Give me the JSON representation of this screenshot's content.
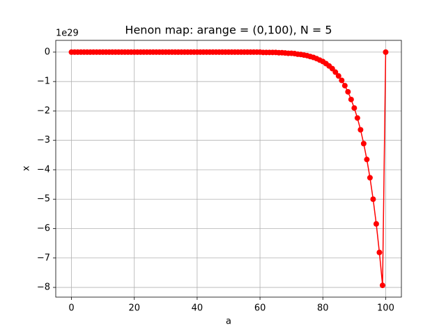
{
  "chart_data": {
    "type": "line",
    "title": "Henon map: arange = (0,100), N = 5",
    "x_label": "a",
    "y_label": "x",
    "y_offset_label": "1e29",
    "x": [
      0,
      1,
      2,
      3,
      4,
      5,
      6,
      7,
      8,
      9,
      10,
      11,
      12,
      13,
      14,
      15,
      16,
      17,
      18,
      19,
      20,
      21,
      22,
      23,
      24,
      25,
      26,
      27,
      28,
      29,
      30,
      31,
      32,
      33,
      34,
      35,
      36,
      37,
      38,
      39,
      40,
      41,
      42,
      43,
      44,
      45,
      46,
      47,
      48,
      49,
      50,
      51,
      52,
      53,
      54,
      55,
      56,
      57,
      58,
      59,
      60,
      61,
      62,
      63,
      64,
      65,
      66,
      67,
      68,
      69,
      70,
      71,
      72,
      73,
      74,
      75,
      76,
      77,
      78,
      79,
      80,
      81,
      82,
      83,
      84,
      85,
      86,
      87,
      88,
      89,
      90,
      91,
      92,
      93,
      94,
      95,
      96,
      97,
      98,
      99,
      100
    ],
    "series": [
      {
        "color": "#ff0000",
        "marker": "circle",
        "values": [
          0,
          0,
          0,
          0,
          0,
          0,
          0,
          0,
          0,
          0,
          0,
          0,
          0,
          0,
          0,
          0,
          0,
          0,
          0,
          0,
          0,
          0,
          0,
          0,
          0,
          0,
          0,
          0,
          0,
          0,
          0,
          0,
          0,
          0,
          0,
          0,
          0,
          0,
          0,
          0,
          0,
          0,
          0,
          0,
          0,
          0,
          0,
          0,
          0,
          0,
          0,
          0,
          0,
          0,
          0,
          0,
          0,
          0,
          0,
          0,
          0,
          -0.01,
          -0.01,
          -0.01,
          -0.01,
          -0.01,
          -0.02,
          -0.02,
          -0.03,
          -0.04,
          -0.04,
          -0.05,
          -0.07,
          -0.08,
          -0.1,
          -0.12,
          -0.15,
          -0.18,
          -0.22,
          -0.27,
          -0.32,
          -0.39,
          -0.47,
          -0.56,
          -0.68,
          -0.81,
          -0.96,
          -1.14,
          -1.35,
          -1.61,
          -1.9,
          -2.24,
          -2.64,
          -3.11,
          -3.65,
          -4.27,
          -5,
          -5.84,
          -6.81,
          -7.93,
          0
        ]
      }
    ],
    "xlim": [
      -5,
      105
    ],
    "ylim": [
      -8.33,
      0.4
    ],
    "xticks": [
      0,
      20,
      40,
      60,
      80,
      100
    ],
    "yticks": [
      0,
      {
        "value": -1,
        "label": "−1"
      },
      {
        "value": -2,
        "label": "−2"
      },
      {
        "value": -3,
        "label": "−3"
      },
      {
        "value": -4,
        "label": "−4"
      },
      {
        "value": -5,
        "label": "−5"
      },
      {
        "value": -6,
        "label": "−6"
      },
      {
        "value": -7,
        "label": "−7"
      },
      {
        "value": -8,
        "label": "−8"
      }
    ],
    "grid": true
  }
}
